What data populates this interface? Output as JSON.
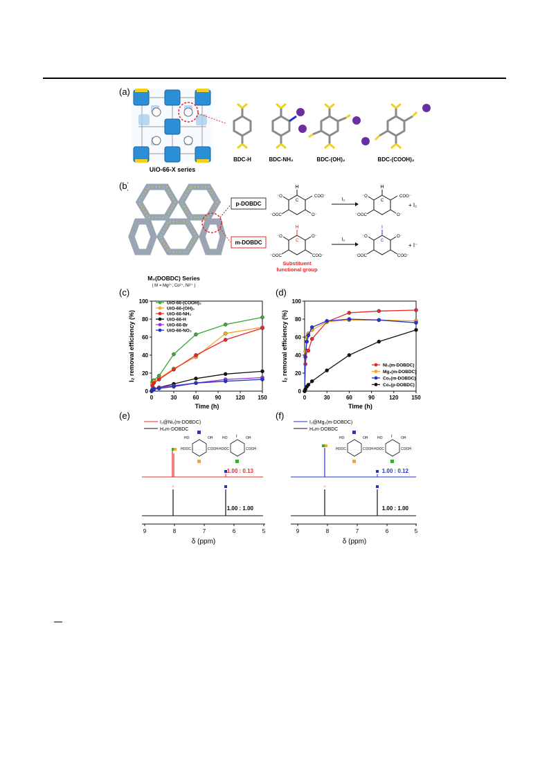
{
  "panels": {
    "a": {
      "label": "(a)",
      "caption": "UiO-66-X series",
      "linkers": [
        "BDC-H",
        "BDC-NH₂",
        "BDC-(OH)₂",
        "BDC-(COOH)₂"
      ]
    },
    "b": {
      "label": "(b)",
      "series_title": "M₂(DOBDC) Series",
      "series_sub": "( M = Mg²⁺, Co²⁺, Ni²⁺ )",
      "p_label": "p-DOBDC",
      "m_label": "m-DOBDC",
      "reagent": "I₂",
      "product_p": "+ I₂",
      "product_m": "+ I⁻",
      "substituent_line1": "Substituent",
      "substituent_line2": "functional group"
    },
    "e": {
      "label": "(e)",
      "legend": [
        "I₂@Ni₂(m-DOBDC)",
        "H₄m-DOBDC"
      ],
      "ratio_top": "1.00 : 0.13",
      "ratio_bottom": "1.00 : 1.00",
      "xlabel": "δ (ppm)",
      "ticks": [
        "9",
        "8",
        "7",
        "6",
        "5"
      ]
    },
    "f": {
      "label": "(f)",
      "legend": [
        "I₂@Mg₂(m-DOBDC)",
        "H₄m-DOBDC"
      ],
      "ratio_top": "1.00 : 0.12",
      "ratio_bottom": "1.00 : 1.00",
      "xlabel": "δ (ppm)",
      "ticks": [
        "9",
        "8",
        "7",
        "6",
        "5"
      ]
    }
  },
  "colors": {
    "red": "#e8252a",
    "green": "#3aa935",
    "orange": "#f5a623",
    "black": "#111111",
    "purple": "#9b30d9",
    "blue": "#2233cc",
    "zr_blue": "#2b8fd8",
    "yellow": "#e9d52b"
  },
  "chart_data": [
    {
      "type": "line",
      "panel_label": "(c)",
      "xlabel": "Time (h)",
      "ylabel": "I₂ removal efficiency (%)",
      "xlim": [
        0,
        150
      ],
      "ylim": [
        0,
        100
      ],
      "xticks": [
        0,
        30,
        60,
        90,
        120,
        150
      ],
      "yticks": [
        0,
        20,
        40,
        60,
        80,
        100
      ],
      "legend_position": "top-left",
      "series": [
        {
          "name": "UiO-66-(COOH)₂",
          "color": "#3aa935",
          "x": [
            0,
            1,
            3,
            10,
            30,
            60,
            100,
            150
          ],
          "y": [
            0,
            10,
            12,
            17,
            41,
            63,
            74,
            82
          ]
        },
        {
          "name": "UiO-66-(OH)₂",
          "color": "#f5a623",
          "x": [
            0,
            1,
            3,
            10,
            30,
            60,
            100,
            150
          ],
          "y": [
            0,
            8,
            11,
            14,
            25,
            38,
            64,
            71
          ]
        },
        {
          "name": "UiO-66-NH₂",
          "color": "#e8252a",
          "x": [
            0,
            1,
            3,
            10,
            30,
            60,
            100,
            150
          ],
          "y": [
            0,
            6,
            9,
            13,
            24,
            40,
            57,
            70
          ]
        },
        {
          "name": "UiO-66-H",
          "color": "#111111",
          "x": [
            0,
            1,
            3,
            10,
            30,
            60,
            100,
            150
          ],
          "y": [
            0,
            2,
            3,
            4,
            8,
            14,
            19,
            22
          ]
        },
        {
          "name": "UiO-66-Br",
          "color": "#9b30d9",
          "x": [
            0,
            1,
            3,
            10,
            30,
            60,
            100,
            150
          ],
          "y": [
            0,
            2,
            3,
            4,
            6,
            9,
            13,
            15
          ]
        },
        {
          "name": "UiO-66-NO₂",
          "color": "#2233cc",
          "x": [
            0,
            1,
            3,
            10,
            30,
            60,
            100,
            150
          ],
          "y": [
            0,
            1,
            2,
            3,
            5,
            9,
            11,
            13
          ]
        }
      ]
    },
    {
      "type": "line",
      "panel_label": "(d)",
      "xlabel": "Time (h)",
      "ylabel": "I₂ removal efficiency (%)",
      "xlim": [
        0,
        150
      ],
      "ylim": [
        0,
        100
      ],
      "xticks": [
        0,
        30,
        60,
        90,
        120,
        150
      ],
      "yticks": [
        0,
        20,
        40,
        60,
        80,
        100
      ],
      "legend_position": "bottom-right",
      "series": [
        {
          "name": "Ni₂(m-DOBDC)",
          "color": "#e8252a",
          "x": [
            0,
            1,
            3,
            5,
            10,
            30,
            60,
            100,
            150
          ],
          "y": [
            0,
            30,
            45,
            45,
            58,
            77,
            87,
            89,
            90
          ]
        },
        {
          "name": "Mg₂(m-DOBDC)",
          "color": "#f5a623",
          "x": [
            0,
            1,
            3,
            5,
            10,
            30,
            60,
            100,
            150
          ],
          "y": [
            0,
            44,
            60,
            64,
            68,
            77,
            79,
            79,
            78
          ]
        },
        {
          "name": "Co₂(m-DOBDC)",
          "color": "#2233cc",
          "x": [
            0,
            1,
            3,
            5,
            10,
            30,
            60,
            100,
            150
          ],
          "y": [
            0,
            38,
            55,
            62,
            71,
            78,
            80,
            79,
            76
          ]
        },
        {
          "name": "Co₂(p-DOBDC)",
          "color": "#111111",
          "x": [
            0,
            1,
            3,
            5,
            10,
            30,
            60,
            100,
            150
          ],
          "y": [
            0,
            2,
            5,
            7,
            11,
            23,
            40,
            55,
            68
          ]
        }
      ]
    }
  ]
}
